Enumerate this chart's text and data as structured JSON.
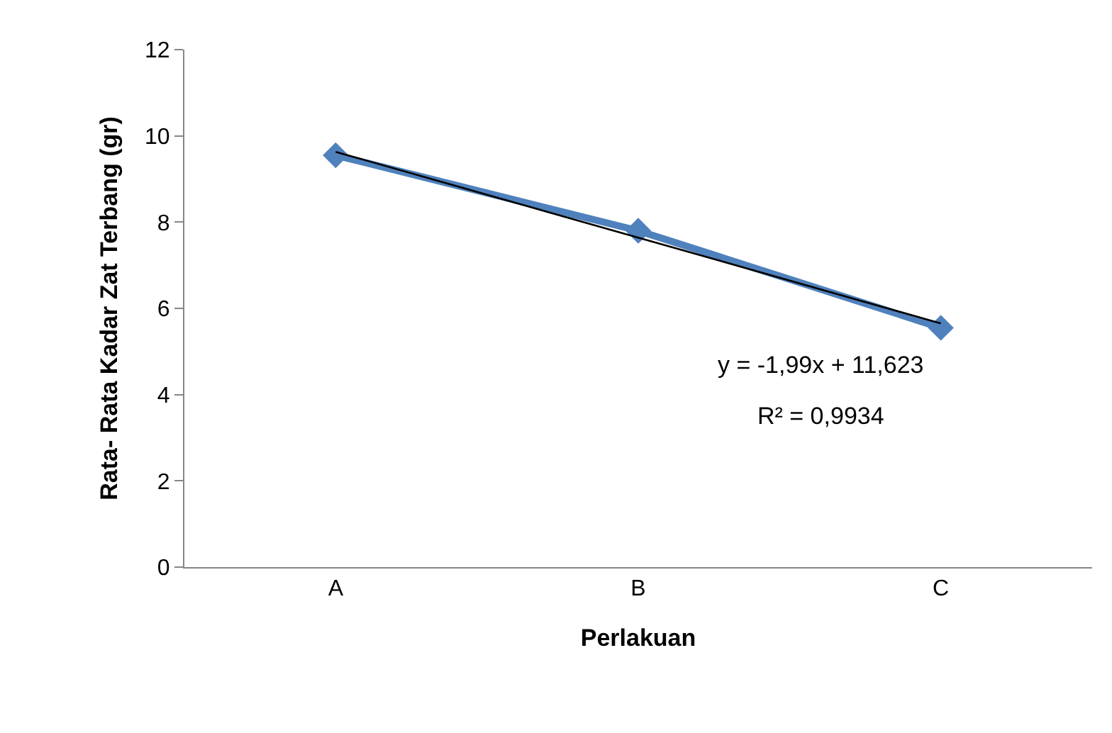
{
  "chart_data": {
    "type": "line",
    "xlabel": "Perlakuan",
    "ylabel": "Rata- Rata Kadar Zat Terbang (gr)",
    "categories": [
      "A",
      "B",
      "C"
    ],
    "series": [
      {
        "color": "#4f81bd",
        "values": [
          9.55,
          7.8,
          5.55
        ],
        "marker": "diamond"
      },
      {
        "type": "line",
        "color": "#000000",
        "x": [
          "A",
          "B",
          "C"
        ],
        "values": [
          9.63,
          7.64,
          5.65
        ],
        "marker": "none"
      }
    ],
    "ylim": [
      0,
      12
    ],
    "yticks": [
      0,
      2,
      4,
      6,
      8,
      10,
      12
    ],
    "annotations": [
      "y = -1,99x + 11,623",
      "R² = 0,9934"
    ]
  }
}
